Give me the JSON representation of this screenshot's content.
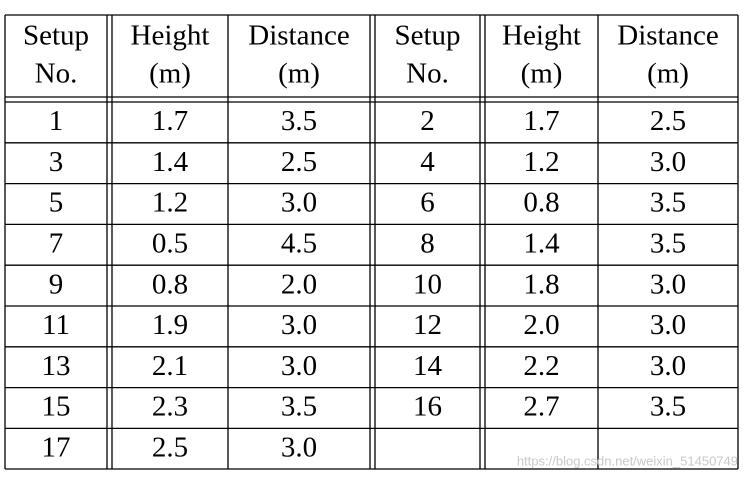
{
  "table": {
    "header": [
      [
        "Setup",
        "No."
      ],
      [
        "Height",
        "(m)"
      ],
      [
        "Distance",
        "(m)"
      ],
      [
        "Setup",
        "No."
      ],
      [
        "Height",
        "(m)"
      ],
      [
        "Distance",
        "(m)"
      ]
    ],
    "rows": [
      [
        "1",
        "1.7",
        "3.5",
        "2",
        "1.7",
        "2.5"
      ],
      [
        "3",
        "1.4",
        "2.5",
        "4",
        "1.2",
        "3.0"
      ],
      [
        "5",
        "1.2",
        "3.0",
        "6",
        "0.8",
        "3.5"
      ],
      [
        "7",
        "0.5",
        "4.5",
        "8",
        "1.4",
        "3.5"
      ],
      [
        "9",
        "0.8",
        "2.0",
        "10",
        "1.8",
        "3.0"
      ],
      [
        "11",
        "1.9",
        "3.0",
        "12",
        "2.0",
        "3.0"
      ],
      [
        "13",
        "2.1",
        "3.0",
        "14",
        "2.2",
        "3.0"
      ],
      [
        "15",
        "2.3",
        "3.5",
        "16",
        "2.7",
        "3.5"
      ],
      [
        "17",
        "2.5",
        "3.0"
      ]
    ]
  },
  "watermark": "https://blog.csdn.net/weixin_51450749"
}
